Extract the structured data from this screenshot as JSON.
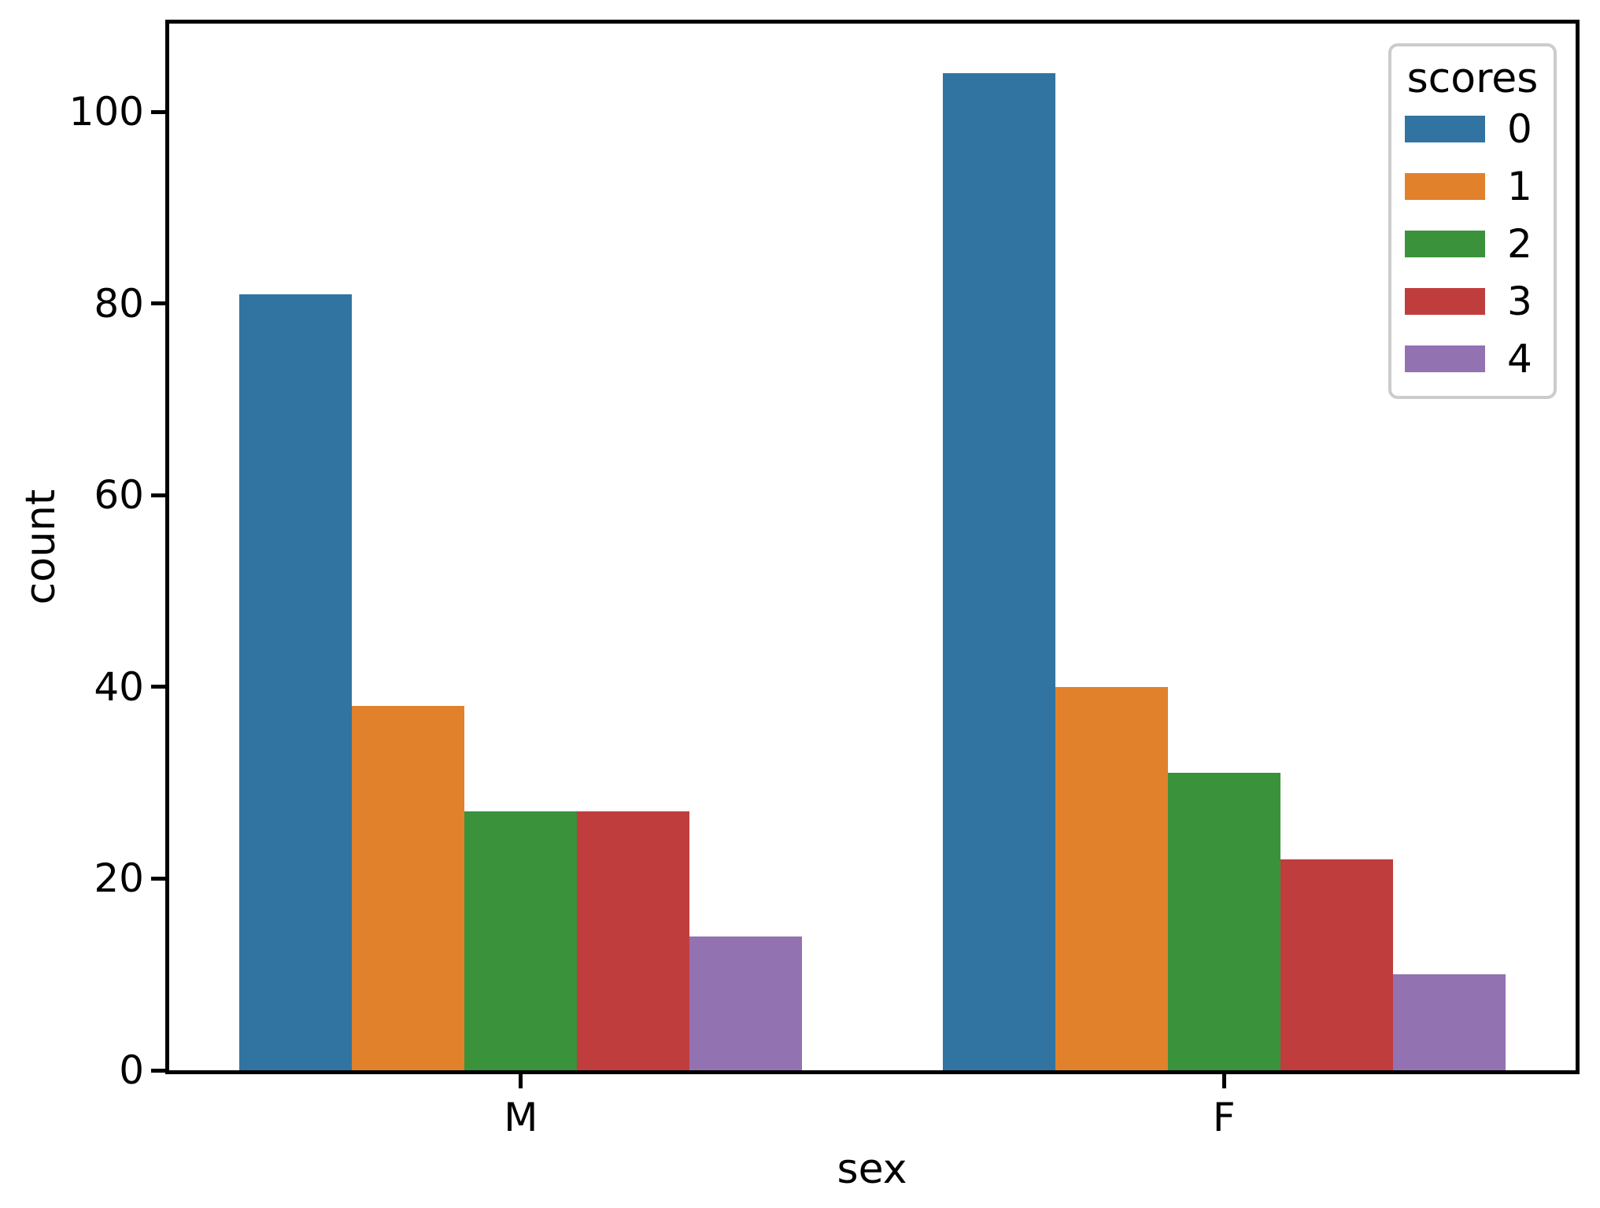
{
  "chart_data": {
    "type": "bar",
    "title": "",
    "xlabel": "sex",
    "ylabel": "count",
    "categories": [
      "M",
      "F"
    ],
    "series": [
      {
        "name": "0",
        "color": "#3274a1",
        "values": [
          81,
          104
        ]
      },
      {
        "name": "1",
        "color": "#e1812c",
        "values": [
          38,
          40
        ]
      },
      {
        "name": "2",
        "color": "#3a923a",
        "values": [
          27,
          31
        ]
      },
      {
        "name": "3",
        "color": "#c03d3e",
        "values": [
          27,
          22
        ]
      },
      {
        "name": "4",
        "color": "#9372b2",
        "values": [
          14,
          10
        ]
      }
    ],
    "legend": {
      "title": "scores",
      "position": "upper right",
      "labels": [
        "0",
        "1",
        "2",
        "3",
        "4"
      ]
    },
    "yticks": [
      0,
      20,
      40,
      60,
      80,
      100
    ],
    "ytick_labels": [
      "0",
      "20",
      "40",
      "60",
      "80",
      "100"
    ],
    "xtick_labels": [
      "M",
      "F"
    ],
    "ylim": [
      0,
      109.2
    ],
    "xlim": [
      -0.5,
      1.5
    ],
    "bar_group_width": 0.8,
    "grid": false,
    "spine_color": "#000000",
    "legend_border_color": "#cccccc"
  }
}
